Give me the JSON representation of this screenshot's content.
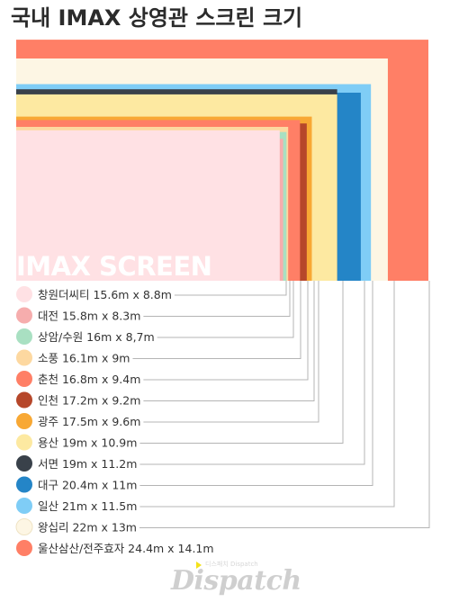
{
  "page": {
    "title": "국내 IMAX 상영관 스크린 크기"
  },
  "watermark": {
    "brand": "Dispatch",
    "tagline": "디스패치 Dispatch"
  },
  "chart_data": {
    "type": "nested-rectangles",
    "title": "국내 IMAX 상영관 스크린 크기",
    "inner_label": "IMAX SCREEN",
    "unit": "m",
    "legend_position": "bottom-left",
    "series": [
      {
        "name": "울산삼산/전주효자",
        "width": 24.4,
        "height": 14.1,
        "color": "#ff7f66",
        "label": "울산삼산/전주효자 24.4m x 14.1m"
      },
      {
        "name": "왕십리",
        "width": 22,
        "height": 13,
        "color": "#fdf6e4",
        "label": "왕십리 22m x 13m"
      },
      {
        "name": "일산",
        "width": 21,
        "height": 11.5,
        "color": "#7fcdf6",
        "label": "일산 21m x 11.5m"
      },
      {
        "name": "대구",
        "width": 20.4,
        "height": 11,
        "color": "#2485c7",
        "label": "대구 20.4m x 11m"
      },
      {
        "name": "서면",
        "width": 19,
        "height": 11.2,
        "color": "#39414a",
        "label": "서면 19m x 11.2m"
      },
      {
        "name": "용산",
        "width": 19,
        "height": 10.9,
        "color": "#fde9a1",
        "label": "용산 19m x 10.9m"
      },
      {
        "name": "광주",
        "width": 17.5,
        "height": 9.6,
        "color": "#f8a834",
        "label": "광주 17.5m x 9.6m"
      },
      {
        "name": "인천",
        "width": 17.2,
        "height": 9.2,
        "color": "#b6472a",
        "label": "인천 17.2m x 9.2m"
      },
      {
        "name": "춘천",
        "width": 16.8,
        "height": 9.4,
        "color": "#ff7f66",
        "label": "춘천 16.8m x 9.4m"
      },
      {
        "name": "소풍",
        "width": 16.1,
        "height": 9,
        "color": "#fdd8a0",
        "label": "소풍 16.1m x 9m"
      },
      {
        "name": "상암/수원",
        "width": 16,
        "height": 8.7,
        "color": "#a9e0c2",
        "label": "상암/수원 16m x 8,7m"
      },
      {
        "name": "대전",
        "width": 15.8,
        "height": 8.3,
        "color": "#f6adad",
        "label": "대전 15.8m x 8.3m"
      },
      {
        "name": "창원더씨티",
        "width": 15.6,
        "height": 8.8,
        "color": "#ffe1e4",
        "label": "창원더씨티 15.6m x 8.8m"
      }
    ]
  }
}
